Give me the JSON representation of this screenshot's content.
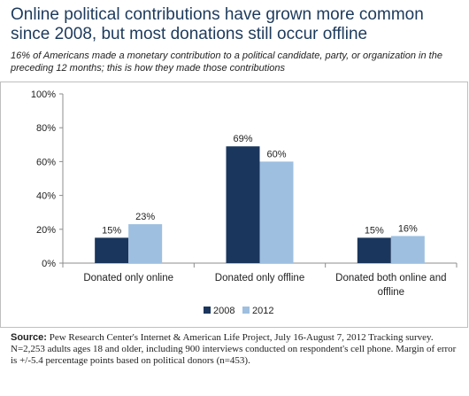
{
  "header": {
    "title": "Online political contributions have grown more common since 2008, but most donations still occur offline",
    "subtitle": "16% of Americans made a monetary contribution to a political candidate, party, or organization in the preceding 12 months; this is how they made those contributions"
  },
  "chart_data": {
    "type": "bar",
    "categories": [
      "Donated only online",
      "Donated only offline",
      "Donated both online and offline"
    ],
    "series": [
      {
        "name": "2008",
        "values": [
          15,
          69,
          15
        ],
        "labels": [
          "15%",
          "69%",
          "15%"
        ],
        "color": "#1b365d"
      },
      {
        "name": "2012",
        "values": [
          23,
          60,
          16
        ],
        "labels": [
          "23%",
          "60%",
          "16%"
        ],
        "color": "#9ebfe0"
      }
    ],
    "ylim": [
      0,
      100
    ],
    "yticks": [
      0,
      20,
      40,
      60,
      80,
      100
    ],
    "ytick_labels": [
      "0%",
      "20%",
      "40%",
      "60%",
      "80%",
      "100%"
    ],
    "legend": "bottom-center",
    "grid": false
  },
  "source": {
    "label": "Source:",
    "text": "Pew Research Center's Internet & American Life Project, July 16-August 7, 2012 Tracking survey. N=2,253 adults ages 18 and older, including 900 interviews conducted on respondent's cell phone. Margin of error is +/-5.4 percentage points based on political donors (n=453)."
  }
}
